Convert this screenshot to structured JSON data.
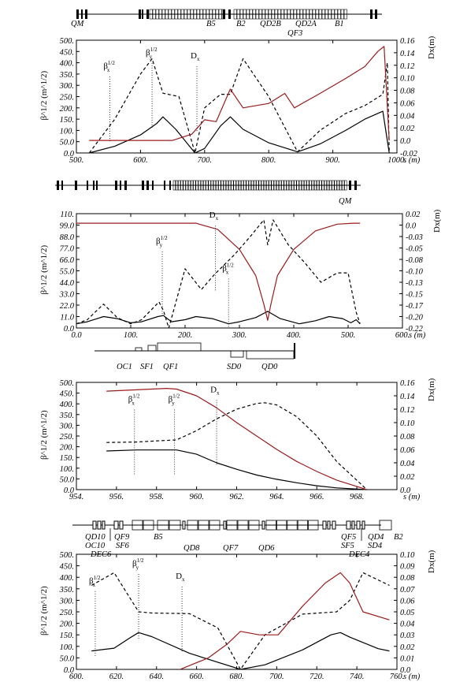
{
  "chart_data": [
    {
      "type": "line",
      "ylabel_left": "β^1/2 (m^1/2)",
      "ylabel_right": "Dx(m)",
      "xlabel": "s (m)",
      "xlim": [
        500,
        1000
      ],
      "ylim_left": [
        0,
        500
      ],
      "ylim_right": [
        -0.02,
        0.16
      ],
      "xticks": [
        "500.",
        "600.",
        "700.",
        "800.",
        "900.",
        "1000."
      ],
      "yticks_left": [
        "0.0",
        "50.0",
        "100.",
        "150.",
        "200.",
        "250.",
        "300.",
        "350.",
        "400.",
        "450.",
        "500."
      ],
      "yticks_right": [
        "-0.02",
        "0.0",
        "0.02",
        "0.04",
        "0.06",
        "0.08",
        "0.10",
        "0.12",
        "0.14",
        "0.16"
      ],
      "magnet_labels": [
        "QM",
        "B5",
        "B2",
        "QD2B",
        "QD2A",
        "B1",
        "QF3"
      ],
      "annotations": [
        {
          "text": "β",
          "sub": "x",
          "sup": "1/2",
          "x": 552,
          "y": 360
        },
        {
          "text": "β",
          "sub": "y",
          "sup": "1/2",
          "x": 618,
          "y": 420
        },
        {
          "text": "D",
          "sub": "x",
          "sup": "",
          "x": 688,
          "y": 405
        }
      ],
      "series": [
        {
          "name": "βx^1/2",
          "axis": "left",
          "style": "solid",
          "color": "#000000",
          "x": [
            520,
            560,
            600,
            625,
            635,
            655,
            685,
            700,
            725,
            740,
            760,
            800,
            845,
            880,
            920,
            950,
            978,
            988
          ],
          "y": [
            0,
            30,
            80,
            130,
            160,
            105,
            0,
            20,
            120,
            160,
            105,
            45,
            5,
            40,
            100,
            150,
            185,
            0
          ]
        },
        {
          "name": "βy^1/2",
          "axis": "left",
          "style": "dashed",
          "color": "#000000",
          "x": [
            520,
            560,
            600,
            618,
            635,
            660,
            685,
            700,
            725,
            740,
            760,
            800,
            845,
            880,
            920,
            950,
            978,
            985,
            988
          ],
          "y": [
            0,
            150,
            350,
            418,
            265,
            250,
            0,
            200,
            260,
            260,
            418,
            250,
            5,
            100,
            175,
            210,
            260,
            400,
            0
          ]
        },
        {
          "name": "Dx",
          "axis": "right",
          "style": "solid",
          "color": "#9b1c1c",
          "x": [
            520,
            600,
            650,
            680,
            700,
            718,
            740,
            760,
            800,
            825,
            840,
            880,
            920,
            950,
            970,
            980,
            988
          ],
          "y": [
            0.0,
            0.0,
            0.0,
            0.01,
            0.033,
            0.03,
            0.082,
            0.052,
            0.059,
            0.075,
            0.052,
            0.075,
            0.099,
            0.118,
            0.142,
            0.15,
            0.0
          ]
        }
      ]
    },
    {
      "type": "line",
      "ylabel_left": "β^1/2 (m^1/2)",
      "ylabel_right": "Dx(m)",
      "xlabel": "s (m)",
      "xlim": [
        0,
        600
      ],
      "ylim_left": [
        0,
        110
      ],
      "ylim_right": [
        -0.22,
        0.02
      ],
      "xticks": [
        "0.0",
        "100.",
        "200.",
        "300.",
        "400.",
        "500.",
        "600."
      ],
      "yticks_left": [
        "0.0",
        "11.0",
        "22.0",
        "33.0",
        "44.0",
        "55.0",
        "66.0",
        "77.0",
        "88.0",
        "99.0",
        "110."
      ],
      "yticks_right": [
        "-0.22",
        "-0.20",
        "-0.17",
        "-0.15",
        "-0.13",
        "-0.10",
        "-0.08",
        "-0.05",
        "-0.03",
        "0.0",
        "0.02"
      ],
      "magnet_labels": [
        "QM"
      ],
      "annotations": [
        {
          "text": "D",
          "sub": "x",
          "sup": "",
          "x": 256,
          "y": 103
        },
        {
          "text": "β",
          "sub": "y",
          "sup": "1/2",
          "x": 158,
          "y": 78
        },
        {
          "text": "β",
          "sub": "x",
          "sup": "1/2",
          "x": 280,
          "y": 52
        }
      ],
      "series": [
        {
          "name": "βx^1/2",
          "axis": "left",
          "style": "solid",
          "color": "#000000",
          "x": [
            0,
            20,
            50,
            75,
            100,
            120,
            150,
            160,
            175,
            200,
            220,
            250,
            280,
            300,
            330,
            352,
            375,
            410,
            440,
            465,
            490,
            505,
            515,
            522
          ],
          "y": [
            4,
            6,
            11,
            9,
            5,
            6,
            11,
            12,
            6,
            8,
            11,
            9,
            4,
            6,
            10,
            16,
            9,
            4,
            7,
            11,
            9,
            5,
            8,
            4
          ]
        },
        {
          "name": "βy^1/2",
          "axis": "left",
          "style": "dashed",
          "color": "#000000",
          "x": [
            0,
            20,
            50,
            75,
            100,
            120,
            152,
            160,
            170,
            200,
            230,
            255,
            290,
            320,
            345,
            352,
            362,
            390,
            420,
            450,
            480,
            500,
            515,
            522
          ],
          "y": [
            4,
            8,
            23,
            10,
            4,
            8,
            25,
            17,
            0,
            57,
            37,
            52,
            70,
            88,
            104,
            80,
            104,
            80,
            63,
            44,
            53,
            53,
            15,
            4
          ]
        },
        {
          "name": "Dx",
          "axis": "right",
          "style": "solid",
          "color": "#9b1c1c",
          "x": [
            0,
            150,
            220,
            260,
            300,
            330,
            345,
            352,
            358,
            370,
            400,
            440,
            480,
            510,
            522
          ],
          "y": [
            0.0,
            0.0,
            0.0,
            -0.013,
            -0.055,
            -0.11,
            -0.17,
            -0.204,
            -0.17,
            -0.11,
            -0.055,
            -0.016,
            -0.002,
            0.0,
            0.0
          ]
        }
      ]
    },
    {
      "type": "line",
      "ylabel_left": "β^1/2 (m^1/2)",
      "ylabel_right": "Dx(m)",
      "xlabel": "s (m)",
      "xlim": [
        954,
        970
      ],
      "ylim_left": [
        0,
        500
      ],
      "ylim_right": [
        0,
        0.16
      ],
      "xticks": [
        "954.",
        "956.",
        "958.",
        "960.",
        "962.",
        "964.",
        "966.",
        "968."
      ],
      "yticks_left": [
        "0.0",
        "50.0",
        "100.",
        "150.",
        "200.",
        "250.",
        "300.",
        "350.",
        "400.",
        "450.",
        "500."
      ],
      "yticks_right": [
        "0.0",
        "0.02",
        "0.04",
        "0.06",
        "0.08",
        "0.10",
        "0.12",
        "0.14",
        "0.16"
      ],
      "magnet_labels": [
        "OC1",
        "SF1",
        "QF1",
        "SD0",
        "QD0"
      ],
      "annotations": [
        {
          "text": "β",
          "sub": "x",
          "sup": "1/2",
          "x": 956.9,
          "y": 395
        },
        {
          "text": "β",
          "sub": "y",
          "sup": "1/2",
          "x": 958.9,
          "y": 395
        },
        {
          "text": "D",
          "sub": "x",
          "sup": "",
          "x": 961.0,
          "y": 440
        }
      ],
      "series": [
        {
          "name": "βx^1/2",
          "axis": "left",
          "style": "solid",
          "color": "#000000",
          "x": [
            955.5,
            957,
            959,
            960,
            961,
            962,
            963,
            964,
            965,
            966,
            967,
            968.5
          ],
          "y": [
            180,
            185,
            185,
            165,
            125,
            95,
            68,
            48,
            32,
            18,
            8,
            0
          ]
        },
        {
          "name": "βy^1/2",
          "axis": "left",
          "style": "dashed",
          "color": "#000000",
          "x": [
            955.5,
            957,
            959,
            960,
            961,
            962,
            963,
            963.4,
            964,
            965,
            966,
            967,
            968.5
          ],
          "y": [
            220,
            222,
            232,
            275,
            330,
            375,
            402,
            405,
            395,
            340,
            250,
            130,
            0
          ]
        },
        {
          "name": "Dx",
          "axis": "right",
          "style": "solid",
          "color": "#9b1c1c",
          "x": [
            955.5,
            957,
            958.5,
            959,
            960,
            961,
            962,
            963,
            964,
            965,
            966,
            967,
            968.5
          ],
          "y": [
            0.147,
            0.149,
            0.151,
            0.15,
            0.14,
            0.122,
            0.1,
            0.08,
            0.06,
            0.042,
            0.027,
            0.014,
            0.0
          ]
        }
      ]
    },
    {
      "type": "line",
      "ylabel_left": "β^1/2 (m^1/2)",
      "ylabel_right": "Dx(m)",
      "xlabel": "s (m)",
      "xlim": [
        600,
        770
      ],
      "ylim_left": [
        0,
        500
      ],
      "ylim_right": [
        0,
        0.1
      ],
      "xticks": [
        "600.",
        "620.",
        "640.",
        "660.",
        "680.",
        "700.",
        "720.",
        "740.",
        "760."
      ],
      "yticks_left": [
        "0.0",
        "50.0",
        "100.",
        "150.",
        "200.",
        "250.",
        "300.",
        "350.",
        "400.",
        "450.",
        "500."
      ],
      "yticks_right": [
        "0.0",
        "0.01",
        "0.02",
        "0.03",
        "0.04",
        "0.05",
        "0.06",
        "0.07",
        "0.08",
        "0.09",
        "0.10"
      ],
      "magnet_labels": [
        "QD10",
        "QF9",
        "OC10",
        "SF6",
        "DEC6",
        "B5",
        "QD8",
        "QF7",
        "QD6",
        "QF5",
        "SF5",
        "QD4",
        "SD4",
        "DEC4",
        "B2"
      ],
      "annotations": [
        {
          "text": "β",
          "sub": "x",
          "sup": "1/2",
          "x": 610,
          "y": 360
        },
        {
          "text": "β",
          "sub": "y",
          "sup": "1/2",
          "x": 633,
          "y": 435
        },
        {
          "text": "D",
          "sub": "x",
          "sup": "",
          "x": 656,
          "y": 380
        }
      ],
      "series": [
        {
          "name": "βx^1/2",
          "axis": "left",
          "style": "solid",
          "color": "#000000",
          "x": [
            608,
            620,
            628,
            633,
            640,
            660,
            687,
            700,
            720,
            735,
            740,
            745,
            760,
            766
          ],
          "y": [
            80,
            92,
            135,
            160,
            142,
            70,
            0,
            20,
            85,
            150,
            160,
            140,
            90,
            80
          ]
        },
        {
          "name": "βy^1/2",
          "axis": "left",
          "style": "dashed",
          "color": "#000000",
          "x": [
            608,
            620,
            633,
            640,
            660,
            675,
            687,
            700,
            720,
            738,
            745,
            752,
            766
          ],
          "y": [
            365,
            420,
            250,
            245,
            242,
            180,
            0,
            150,
            240,
            250,
            300,
            420,
            365
          ]
        },
        {
          "name": "Dx",
          "axis": "right",
          "style": "solid",
          "color": "#9b1c1c",
          "x": [
            655,
            670,
            680,
            687,
            697,
            707,
            720,
            732,
            740,
            745,
            752,
            766
          ],
          "y": [
            0.0,
            0.01,
            0.022,
            0.033,
            0.03,
            0.03,
            0.055,
            0.075,
            0.084,
            0.075,
            0.05,
            0.043
          ]
        }
      ]
    }
  ]
}
